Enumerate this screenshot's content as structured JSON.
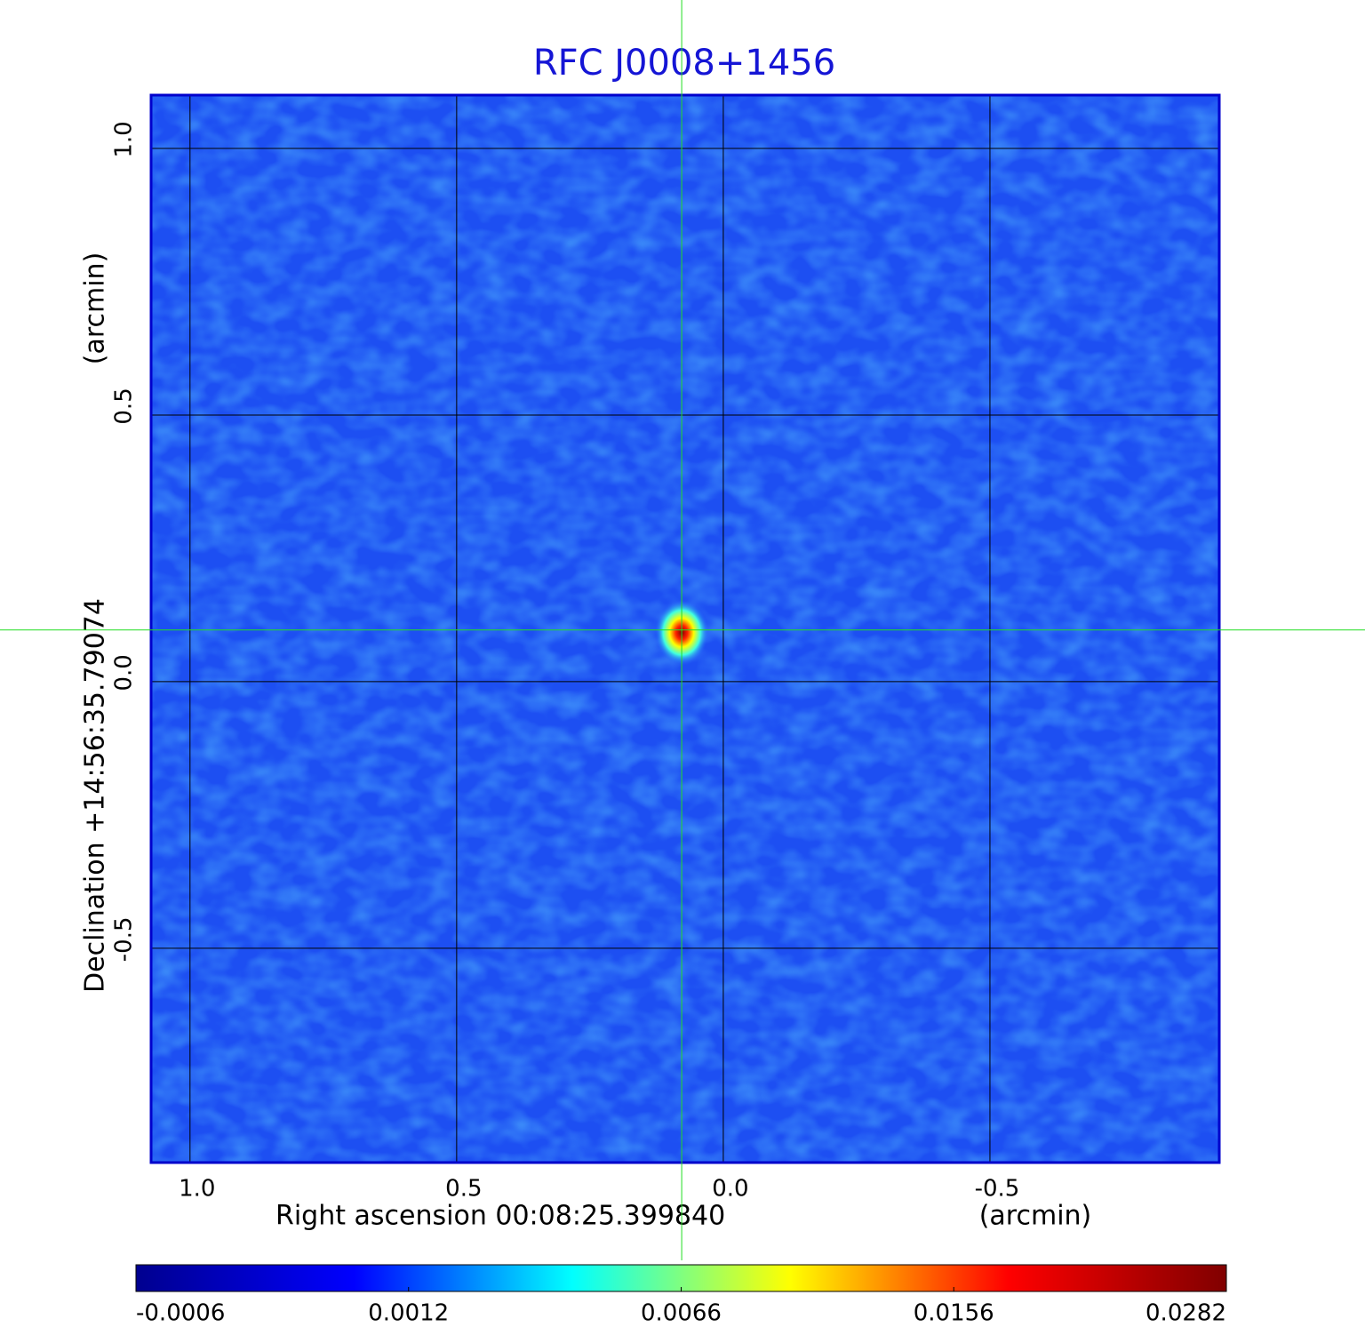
{
  "chart_data": {
    "type": "image",
    "title": "RFC J0008+1456",
    "x_label": "Right ascension  00:08:25.399840",
    "x_unit": "(arcmin)",
    "y_label": "Declination  +14:56:35.79074",
    "y_unit": "(arcmin)",
    "xlim": [
      1.073,
      -0.93
    ],
    "ylim": [
      -0.902,
      1.1
    ],
    "xticks": [
      {
        "value": 1,
        "label": "1.0"
      },
      0.5,
      {
        "value": 0,
        "label": "0.0"
      },
      -0.5
    ],
    "yticks": [
      {
        "value": 1,
        "label": "1.0"
      },
      0.5,
      {
        "value": 0,
        "label": "0.0"
      },
      -0.5
    ],
    "grid": true,
    "crosshair": {
      "x": 0.078,
      "y": 0.097,
      "color": "#22dd22"
    },
    "colormap": [
      "#00008f",
      "#0000ff",
      "#00ffff",
      "#ffff00",
      "#ff0000",
      "#800000"
    ],
    "colorbar_ticks": [
      -0.0006,
      0.0012,
      0.0066,
      0.0156,
      0.0282
    ]
  }
}
